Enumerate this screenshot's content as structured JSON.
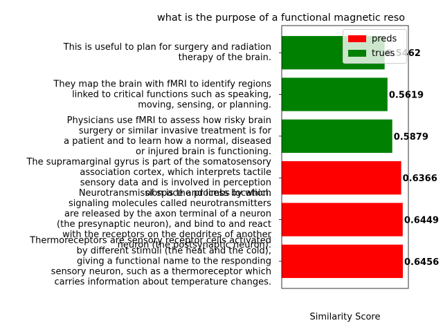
{
  "chart_data": {
    "type": "bar",
    "orientation": "horizontal",
    "title": "what is the purpose of a functional magnetic reso",
    "xlabel": "Similarity Score",
    "ylabel": "",
    "xlim": [
      0,
      0.6456
    ],
    "grid": false,
    "legend": {
      "placement": "top-right",
      "entries": [
        {
          "name": "preds",
          "color": "#ff0000"
        },
        {
          "name": "trues",
          "color": "#008000"
        }
      ]
    },
    "categories": [
      "Thermoreceptors are sensory receptor cells activated by different stimuli (the heat and the cold), giving a functional name to the responding sensory neuron, such as a thermoreceptor which carries information about temperature changes.",
      "Neurotransmission is the process by which signaling molecules called neurotransmitters are released by the axon terminal of a neuron (the presynaptic neuron), and bind to and react with the receptors on the dendrites of another neuron (the postsynaptic neuron).",
      "The supramarginal gyrus is part of the somatosensory association cortex, which interprets tactile sensory data and is involved in perception of space and limbs location.",
      "Physicians use fMRI to assess how risky brain surgery or similar invasive treatment is for a patient and to learn how a normal, diseased or injured brain is functioning.",
      "They map the brain with fMRI to identify regions linked to critical functions such as speaking, moving, sensing, or planning.",
      "This is useful to plan for surgery and radiation therapy of the brain."
    ],
    "display_lines": [
      [
        "Thermoreceptors are sensory receptor cells activated",
        "by different stimuli (the heat and the cold),",
        "giving a functional name to the responding",
        "sensory neuron, such as a thermoreceptor which",
        "carries information about temperature changes."
      ],
      [
        "Neurotransmission is the process by which",
        "signaling molecules called neurotransmitters",
        "are released by the axon terminal of a neuron",
        "(the presynaptic neuron), and bind to and react",
        "with the receptors on the dendrites of another",
        "neuron (the postsynaptic neuron)."
      ],
      [
        "The supramarginal gyrus is part of the somatosensory",
        "association cortex, which interprets tactile",
        "sensory data and is involved in perception",
        "of space and limbs location."
      ],
      [
        "Physicians use fMRI to assess how risky brain",
        "surgery or similar invasive treatment is for",
        "a patient and to learn how a normal, diseased",
        "or injured brain is functioning."
      ],
      [
        "They map the brain with fMRI to identify regions",
        "linked to critical functions such as speaking,",
        "moving, sensing, or planning."
      ],
      [
        "This is useful to plan for surgery and radiation",
        "therapy of the brain."
      ]
    ],
    "values": [
      0.6456,
      0.6449,
      0.6366,
      0.5879,
      0.5619,
      0.5462
    ],
    "value_labels": [
      "0.6456",
      "0.6449",
      "0.6366",
      "0.5879",
      "0.5619",
      "0.5462"
    ],
    "series_membership": [
      "preds",
      "preds",
      "preds",
      "trues",
      "trues",
      "trues"
    ]
  }
}
